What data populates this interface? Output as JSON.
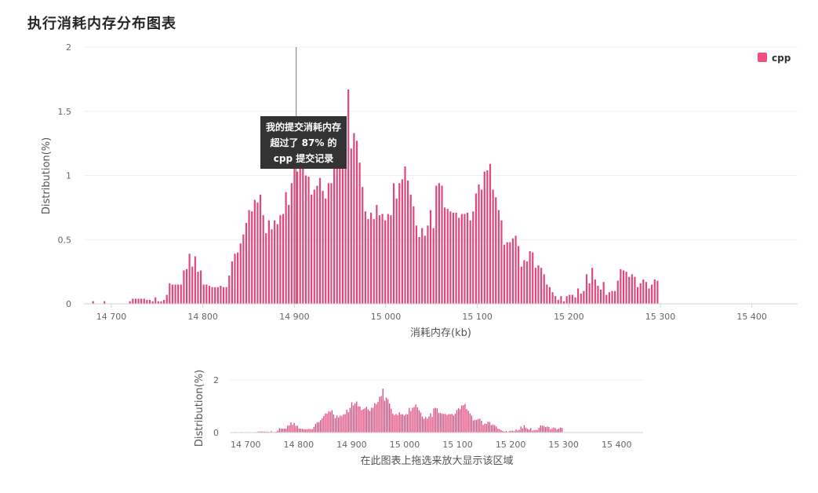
{
  "page": {
    "title": "执行消耗内存分布图表"
  },
  "chart_data": {
    "type": "bar",
    "series_name": "cpp",
    "color": "#e0457b",
    "legend_color": "#f0507f",
    "xlabel": "消耗内存(kb)",
    "ylabel": "Distribution(%)",
    "xlim": [
      14670,
      15450
    ],
    "ylim": [
      0,
      2
    ],
    "yticks": [
      0,
      0.5,
      1,
      1.5,
      2
    ],
    "ytick_labels": [
      "0",
      "0.5",
      "1",
      "1.5",
      "2"
    ],
    "xticks": [
      14700,
      14800,
      14900,
      15000,
      15100,
      15200,
      15300,
      15400
    ],
    "xtick_labels": [
      "14 700",
      "14 800",
      "14 900",
      "15 000",
      "15 100",
      "15 200",
      "15 300",
      "15 400"
    ],
    "crosshair_x": 14902,
    "tooltip": [
      "我的提交消耗内存",
      "超过了 87% 的",
      "cpp 提交记录"
    ],
    "x_start": 14680,
    "x_step": 3.1,
    "values": [
      0.02,
      0,
      0,
      0,
      0.02,
      0,
      0,
      0,
      0,
      0,
      0,
      0,
      0,
      0.02,
      0.04,
      0.04,
      0.04,
      0.04,
      0.04,
      0.03,
      0.03,
      0.02,
      0.05,
      0.02,
      0.02,
      0.03,
      0.07,
      0.16,
      0.15,
      0.15,
      0.15,
      0.15,
      0.26,
      0.27,
      0.39,
      0.29,
      0.37,
      0.25,
      0.26,
      0.15,
      0.15,
      0.14,
      0.13,
      0.13,
      0.13,
      0.14,
      0.13,
      0.13,
      0.22,
      0.33,
      0.39,
      0.4,
      0.47,
      0.54,
      0.63,
      0.73,
      0.72,
      0.81,
      0.79,
      0.85,
      0.69,
      0.55,
      0.65,
      0.58,
      0.65,
      0.62,
      0.69,
      0.7,
      0.87,
      0.77,
      0.94,
      1.15,
      1.03,
      1.11,
      1.18,
      1.0,
      0.99,
      0.85,
      0.89,
      0.92,
      0.98,
      0.88,
      0.82,
      0.94,
      0.94,
      1.12,
      1.08,
      1.16,
      1.36,
      1.39,
      1.67,
      1.21,
      1.33,
      1.27,
      1.1,
      0.91,
      0.72,
      0.66,
      0.71,
      0.66,
      0.77,
      0.69,
      0.7,
      0.65,
      0.7,
      0.69,
      0.94,
      0.82,
      0.94,
      0.97,
      1.07,
      0.96,
      0.85,
      0.76,
      0.61,
      0.52,
      0.59,
      0.53,
      0.61,
      0.73,
      0.59,
      0.92,
      0.94,
      0.92,
      0.75,
      0.74,
      0.72,
      0.71,
      0.71,
      0.67,
      0.7,
      0.7,
      0.71,
      0.65,
      0.72,
      0.86,
      0.93,
      0.89,
      1.03,
      1.04,
      1.09,
      0.89,
      0.83,
      0.73,
      0.65,
      0.46,
      0.48,
      0.48,
      0.51,
      0.53,
      0.45,
      0.29,
      0.34,
      0.33,
      0.41,
      0.4,
      0.28,
      0.3,
      0.28,
      0.23,
      0.15,
      0.13,
      0.09,
      0.06,
      0.03,
      0.06,
      0.02,
      0.06,
      0.07,
      0.07,
      0.05,
      0.12,
      0.08,
      0.1,
      0.23,
      0.16,
      0.28,
      0.19,
      0.14,
      0.11,
      0.17,
      0.07,
      0.09,
      0.1,
      0.1,
      0.18,
      0.27,
      0.26,
      0.25,
      0.21,
      0.23,
      0.21,
      0.13,
      0.16,
      0.19,
      0.17,
      0.12,
      0.15,
      0.19,
      0.18
    ]
  },
  "overview": {
    "ylabel": "Distribution(%)",
    "yticks": [
      0,
      2
    ],
    "ytick_labels": [
      "0",
      "2"
    ],
    "xtick_labels": [
      "14 700",
      "14 800",
      "14 900",
      "15 000",
      "15 100",
      "15 200",
      "15 300",
      "15 400"
    ],
    "hint": "在此图表上拖选来放大显示该区域"
  }
}
